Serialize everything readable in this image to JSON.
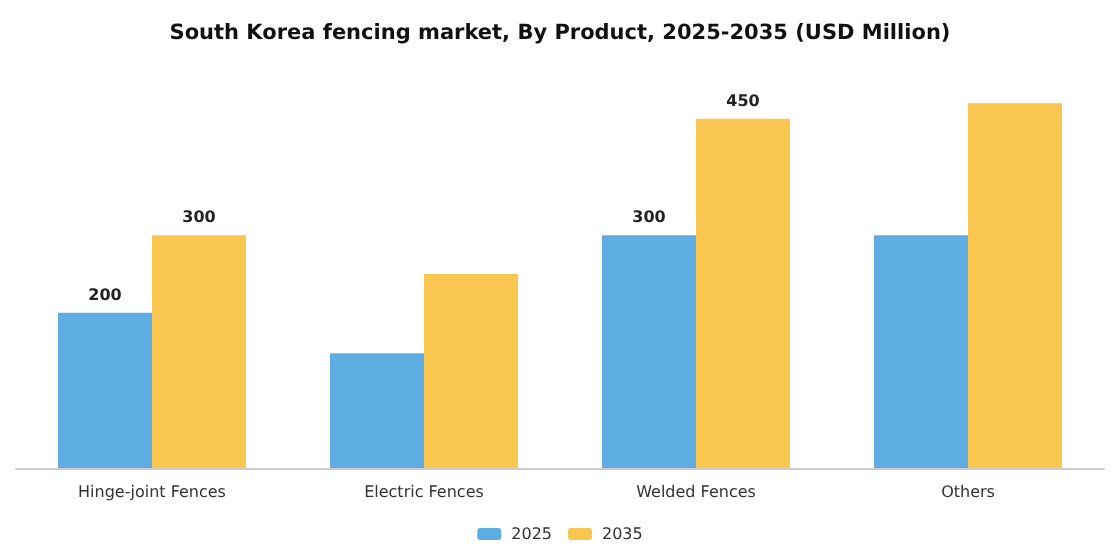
{
  "chart_data": {
    "type": "bar",
    "title": "South Korea fencing market, By Product, 2025-2035 (USD Million)",
    "categories": [
      "Hinge-joint Fences",
      "Electric Fences",
      "Welded Fences",
      "Others"
    ],
    "series": [
      {
        "name": "2025",
        "color": "#5dade2",
        "values": [
          200,
          148,
          300,
          300
        ],
        "value_labels": [
          "200",
          null,
          "300",
          null
        ]
      },
      {
        "name": "2035",
        "color": "#f9c74f",
        "values": [
          300,
          250,
          450,
          470
        ],
        "value_labels": [
          "300",
          null,
          "450",
          null
        ]
      }
    ],
    "legend": "bottom",
    "grid": false
  }
}
